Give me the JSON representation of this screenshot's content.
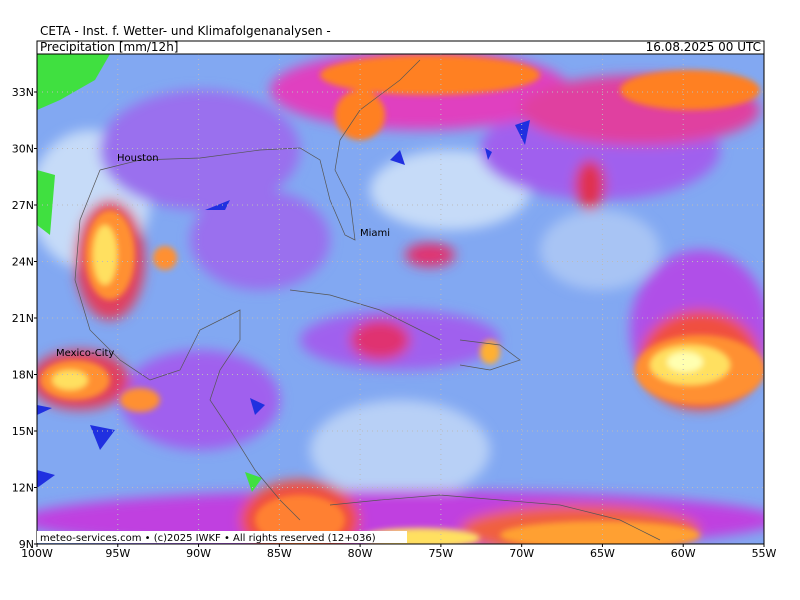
{
  "header": {
    "title": "CETA - Inst. f. Wetter- und Klimafolgenanalysen -",
    "product": "Precipitation [mm/12h]",
    "valid_time": "16.08.2025 00 UTC"
  },
  "map": {
    "lat_labels": [
      "33N",
      "30N",
      "27N",
      "24N",
      "21N",
      "18N",
      "15N",
      "12N",
      "9N"
    ],
    "lon_labels": [
      "100W",
      "95W",
      "90W",
      "85W",
      "80W",
      "75W",
      "70W",
      "65W",
      "60W",
      "55W"
    ],
    "places": [
      "Houston",
      "Miami",
      "Mexico-City"
    ]
  },
  "footer": "meteo-services.com • (c)2025 IWKF • All rights reserved (12+036)"
}
